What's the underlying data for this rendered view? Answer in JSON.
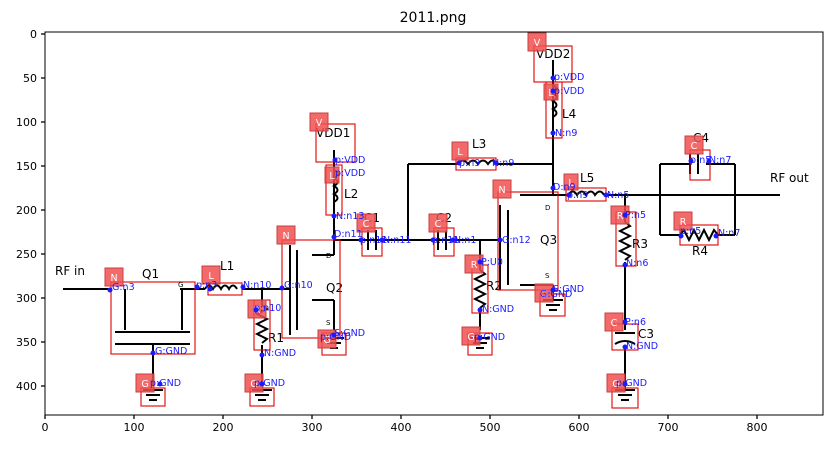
{
  "figure": {
    "title": "2011.png",
    "x_ticks": [
      "0",
      "100",
      "200",
      "300",
      "400",
      "500",
      "600",
      "700",
      "800"
    ],
    "y_ticks": [
      "0",
      "50",
      "100",
      "150",
      "200",
      "250",
      "300",
      "350",
      "400"
    ]
  },
  "circuit_labels": {
    "rf_in": "RF in",
    "rf_out": "RF out",
    "q1": "Q1",
    "q2": "Q2",
    "q3": "Q3",
    "l1": "L1",
    "l2": "L2",
    "l3": "L3",
    "l4": "L4",
    "l5": "L5",
    "r1": "R1",
    "r2": "R2",
    "r3": "R3",
    "r4": "R4",
    "c1": "C1",
    "c2": "C2",
    "c3": "C3",
    "c4": "C4",
    "vdd1": "VDD1",
    "vdd2": "VDD2",
    "g_small": "G",
    "d_small": "D",
    "s_small": "S"
  },
  "badges": {
    "v": "V",
    "n": "N",
    "l": "L",
    "r": "R",
    "c": "C",
    "g": "G"
  },
  "annotations": {
    "q1_g": "G:n3",
    "q1_s": "G:GND",
    "gnd1": "p:GND",
    "l1_ab": "p:n3",
    "l1_mid": "N:n10",
    "l1_end": "G:n10",
    "r1_top": "p:n10",
    "r1_bot": "N:GND",
    "gnd2": "p:GND",
    "vdd1": "p:VDD",
    "l2_top": "p:VDD",
    "l2_bot": "N:n13",
    "q2_d": "D:n11",
    "q2_s": "S:GND",
    "q2_s2": "p:GND",
    "c1_a": "p:n11",
    "c1_b": "N:n11",
    "l3_a": "p:n9",
    "l3_b": "N:n9",
    "c2_a": "p:n11",
    "c2_b": "N:n1",
    "q3_g": "G:n12",
    "r2_top": "P:U0",
    "r2_bot": "N:GND",
    "gnd3": "p:GND",
    "q3_s": "S:GND",
    "q3_s2": "G:GND",
    "vdd2_a": "p:VDD",
    "vdd2_b": "p:VDD",
    "l4_bot": "N:n9",
    "q3_d": "D:n9",
    "l5_a": "p:n9",
    "l5_b": "N:n5",
    "c4_a": "p:n5",
    "c4_b": "N:n7",
    "r3_top": "P:n5",
    "r3_bot": "N:n6",
    "r4_a": "p:n5",
    "r4_b": "N:n7",
    "c3_top": "P:n6",
    "c3_bot": "N:GND",
    "gnd4": "p:GND"
  }
}
